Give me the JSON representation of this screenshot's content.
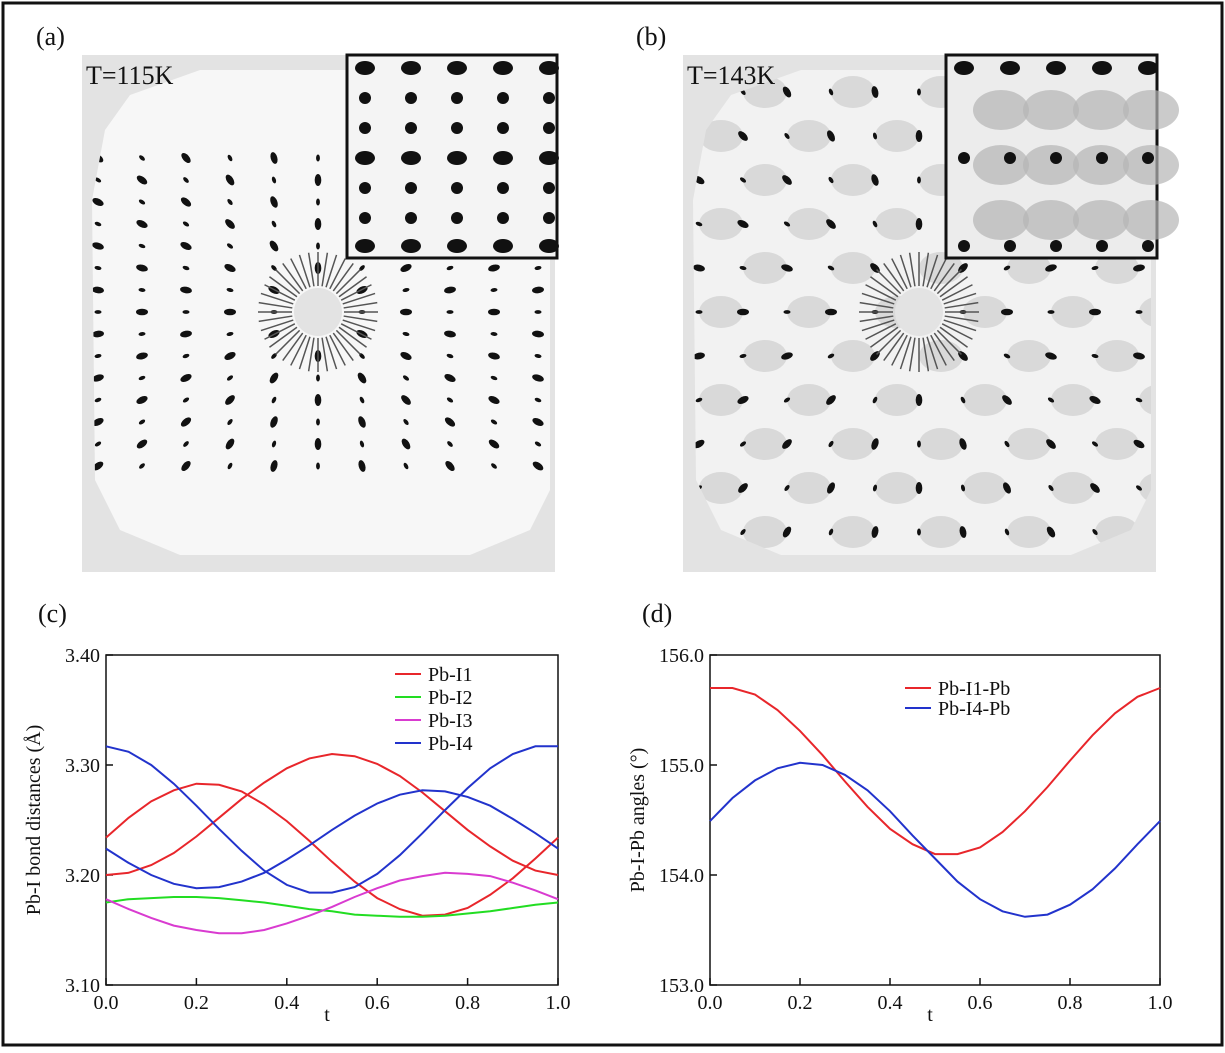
{
  "panels": [
    {
      "label": "(a)",
      "temperature": "T=115K"
    },
    {
      "label": "(b)",
      "temperature": "T=143K"
    }
  ],
  "chart_data": [
    {
      "type": "line",
      "panel_label": "(c)",
      "x_label": "t",
      "y_label": "Pb-I bond distances (Å)",
      "xlim": [
        0,
        1
      ],
      "ylim": [
        3.1,
        3.4
      ],
      "xticks": [
        {
          "value": 0,
          "label": "0.0"
        },
        0.2,
        0.4,
        0.6,
        0.8,
        {
          "value": 1,
          "label": "1.0"
        }
      ],
      "yticks": [
        {
          "value": 3.1,
          "label": "3.10"
        },
        {
          "value": 3.2,
          "label": "3.20"
        },
        {
          "value": 3.3,
          "label": "3.30"
        },
        {
          "value": 3.4,
          "label": "3.40"
        }
      ],
      "legend": "upper right",
      "x": [
        0,
        0.05,
        0.1,
        0.15,
        0.2,
        0.25,
        0.3,
        0.35,
        0.4,
        0.45,
        0.5,
        0.55,
        0.6,
        0.65,
        0.7,
        0.75,
        0.8,
        0.85,
        0.9,
        0.95,
        1
      ],
      "series": [
        {
          "name": "Pb-I1",
          "color": "#e8262b",
          "values": [
            3.234,
            3.252,
            3.267,
            3.277,
            3.283,
            3.282,
            3.276,
            3.264,
            3.249,
            3.231,
            3.212,
            3.194,
            3.179,
            3.169,
            3.163,
            3.164,
            3.17,
            3.182,
            3.197,
            3.215,
            3.234
          ]
        },
        {
          "color": "#e8262b",
          "values": [
            3.2,
            3.202,
            3.209,
            3.22,
            3.235,
            3.252,
            3.269,
            3.284,
            3.297,
            3.306,
            3.31,
            3.308,
            3.301,
            3.29,
            3.275,
            3.258,
            3.241,
            3.226,
            3.213,
            3.204,
            3.2
          ]
        },
        {
          "name": "Pb-I2",
          "color": "#22dd22",
          "values": [
            3.175,
            3.178,
            3.179,
            3.18,
            3.18,
            3.179,
            3.177,
            3.175,
            3.172,
            3.169,
            3.167,
            3.164,
            3.163,
            3.162,
            3.162,
            3.163,
            3.165,
            3.167,
            3.17,
            3.173,
            3.175
          ]
        },
        {
          "name": "Pb-I3",
          "color": "#d93bd0",
          "values": [
            3.178,
            3.169,
            3.161,
            3.154,
            3.15,
            3.147,
            3.147,
            3.15,
            3.156,
            3.163,
            3.171,
            3.18,
            3.188,
            3.195,
            3.199,
            3.202,
            3.201,
            3.199,
            3.193,
            3.186,
            3.178
          ]
        },
        {
          "name": "Pb-I4",
          "color": "#2233cc",
          "values": [
            3.317,
            3.312,
            3.3,
            3.283,
            3.263,
            3.242,
            3.222,
            3.204,
            3.191,
            3.184,
            3.184,
            3.189,
            3.201,
            3.218,
            3.238,
            3.259,
            3.279,
            3.297,
            3.31,
            3.317,
            3.317
          ]
        },
        {
          "color": "#2233cc",
          "values": [
            3.224,
            3.211,
            3.2,
            3.192,
            3.188,
            3.189,
            3.194,
            3.202,
            3.214,
            3.227,
            3.241,
            3.254,
            3.265,
            3.273,
            3.277,
            3.276,
            3.271,
            3.263,
            3.251,
            3.238,
            3.224
          ]
        }
      ]
    },
    {
      "type": "line",
      "panel_label": "(d)",
      "x_label": "t",
      "y_label": "Pb-I-Pb angles (°)",
      "xlim": [
        0,
        1
      ],
      "ylim": [
        153,
        156
      ],
      "xticks": [
        {
          "value": 0,
          "label": "0.0"
        },
        0.2,
        0.4,
        0.6,
        0.8,
        {
          "value": 1,
          "label": "1.0"
        }
      ],
      "yticks": [
        {
          "value": 153,
          "label": "153.0"
        },
        {
          "value": 154,
          "label": "154.0"
        },
        {
          "value": 155,
          "label": "155.0"
        },
        {
          "value": 156,
          "label": "156.0"
        }
      ],
      "legend": "upper center",
      "x": [
        0,
        0.05,
        0.1,
        0.15,
        0.2,
        0.25,
        0.3,
        0.35,
        0.4,
        0.45,
        0.5,
        0.55,
        0.6,
        0.65,
        0.7,
        0.75,
        0.8,
        0.85,
        0.9,
        0.95,
        1
      ],
      "series": [
        {
          "name": "Pb-I1-Pb",
          "color": "#e8262b",
          "values": [
            155.7,
            155.7,
            155.64,
            155.5,
            155.31,
            155.09,
            154.85,
            154.62,
            154.42,
            154.28,
            154.19,
            154.19,
            154.25,
            154.39,
            154.58,
            154.8,
            155.04,
            155.27,
            155.47,
            155.62,
            155.7
          ]
        },
        {
          "name": "Pb-I4-Pb",
          "color": "#2233cc",
          "values": [
            154.49,
            154.7,
            154.86,
            154.97,
            155.02,
            155.0,
            154.91,
            154.77,
            154.58,
            154.36,
            154.15,
            153.94,
            153.78,
            153.67,
            153.62,
            153.64,
            153.73,
            153.87,
            154.06,
            154.28,
            154.49
          ]
        }
      ]
    }
  ]
}
